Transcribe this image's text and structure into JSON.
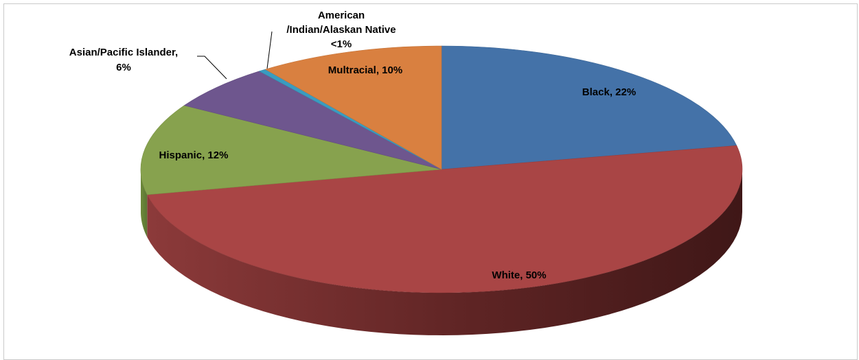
{
  "chart_data": {
    "type": "pie",
    "style": "3d",
    "title": "",
    "slices": [
      {
        "name": "Black",
        "value": 22,
        "label": "Black, 22%",
        "color": "#4472A8"
      },
      {
        "name": "White",
        "value": 50,
        "label": "White, 50%",
        "color": "#A94545"
      },
      {
        "name": "Hispanic",
        "value": 12,
        "label": "Hispanic, 12%",
        "color": "#87A24E"
      },
      {
        "name": "Asian/Pacific Islander",
        "value": 6,
        "label_lines": [
          "Asian/Pacific Islander,",
          "6%"
        ],
        "color": "#6E568E"
      },
      {
        "name": "American /Indian/Alaskan Native",
        "value": 0.4,
        "label_lines": [
          "American",
          "/Indian/Alaskan Native",
          "<1%"
        ],
        "color": "#3A9CC0"
      },
      {
        "name": "Multracial",
        "value": 10,
        "label": "Multracial, 10%",
        "color": "#D98040"
      }
    ],
    "legend": "none"
  }
}
